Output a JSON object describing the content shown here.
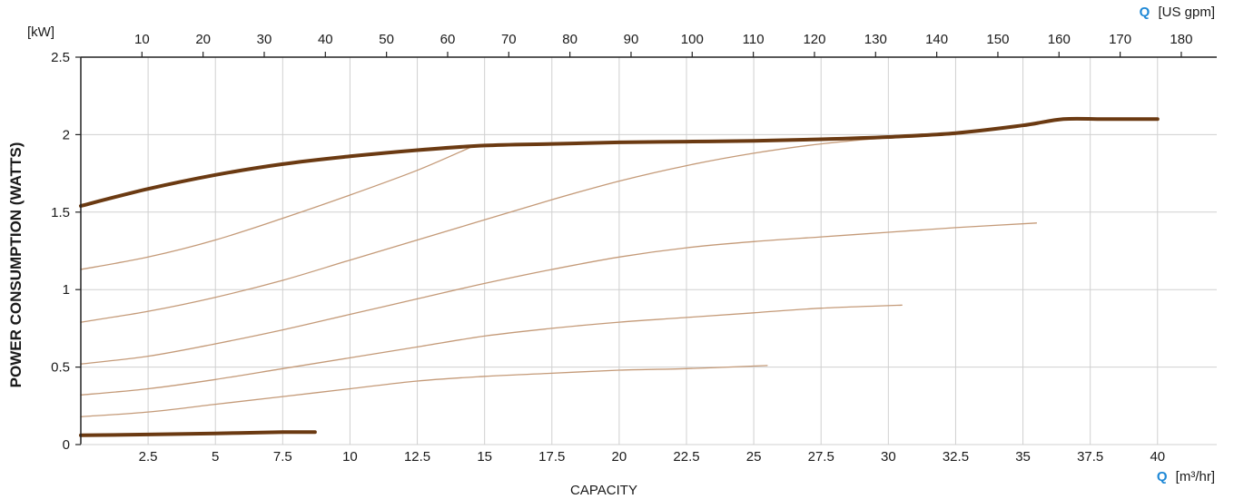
{
  "chart_data": {
    "type": "line",
    "title": "",
    "ylabel": "POWER CONSUMPTION (WATTS)",
    "xlabel": "CAPACITY",
    "y_unit_label": "[kW]",
    "x_bottom_unit": {
      "q": "Q",
      "unit": "[m³/hr]"
    },
    "x_top_unit": {
      "q": "Q",
      "unit": "[US gpm]"
    },
    "xlim": [
      0,
      42.2
    ],
    "ylim": [
      0,
      2.5
    ],
    "grid": true,
    "x_ticks": [
      {
        "value": 2.5,
        "label": "2.5"
      },
      {
        "value": 5,
        "label": "5"
      },
      {
        "value": 7.5,
        "label": "7.5"
      },
      {
        "value": 10,
        "label": "10"
      },
      {
        "value": 12.5,
        "label": "12.5"
      },
      {
        "value": 15,
        "label": "15"
      },
      {
        "value": 17.5,
        "label": "17.5"
      },
      {
        "value": 20,
        "label": "20"
      },
      {
        "value": 22.5,
        "label": "22.5"
      },
      {
        "value": 25,
        "label": "25"
      },
      {
        "value": 27.5,
        "label": "27.5"
      },
      {
        "value": 30,
        "label": "30"
      },
      {
        "value": 32.5,
        "label": "32.5"
      },
      {
        "value": 35,
        "label": "35"
      },
      {
        "value": 37.5,
        "label": "37.5"
      },
      {
        "value": 40,
        "label": "40"
      }
    ],
    "x_top_ticks": [
      {
        "value": 10,
        "label": "10"
      },
      {
        "value": 20,
        "label": "20"
      },
      {
        "value": 30,
        "label": "30"
      },
      {
        "value": 40,
        "label": "40"
      },
      {
        "value": 50,
        "label": "50"
      },
      {
        "value": 60,
        "label": "60"
      },
      {
        "value": 70,
        "label": "70"
      },
      {
        "value": 80,
        "label": "80"
      },
      {
        "value": 90,
        "label": "90"
      },
      {
        "value": 100,
        "label": "100"
      },
      {
        "value": 110,
        "label": "110"
      },
      {
        "value": 120,
        "label": "120"
      },
      {
        "value": 130,
        "label": "130"
      },
      {
        "value": 140,
        "label": "140"
      },
      {
        "value": 150,
        "label": "150"
      },
      {
        "value": 160,
        "label": "160"
      },
      {
        "value": 170,
        "label": "170"
      },
      {
        "value": 180,
        "label": "180"
      }
    ],
    "y_ticks": [
      {
        "value": 0,
        "label": "0"
      },
      {
        "value": 0.5,
        "label": "0.5"
      },
      {
        "value": 1,
        "label": "1"
      },
      {
        "value": 1.5,
        "label": "1.5"
      },
      {
        "value": 2,
        "label": "2"
      },
      {
        "value": 2.5,
        "label": "2.5"
      }
    ],
    "colors": {
      "thick": "#6b3a12",
      "thin": "#c49a78",
      "q_accent": "#1e88d6"
    },
    "series": [
      {
        "style": "thick",
        "x": [
          0,
          2.5,
          5,
          7.5,
          10,
          12.5,
          15,
          17.5,
          20,
          22.5,
          25,
          27.5,
          30,
          32.5,
          35,
          36.5,
          38,
          40
        ],
        "y": [
          1.54,
          1.65,
          1.74,
          1.81,
          1.86,
          1.9,
          1.93,
          1.94,
          1.95,
          1.955,
          1.96,
          1.97,
          1.985,
          2.01,
          2.06,
          2.1,
          2.1,
          2.1
        ]
      },
      {
        "style": "thin",
        "x": [
          0,
          2.5,
          5,
          7.5,
          10,
          12.5,
          14.5
        ],
        "y": [
          1.13,
          1.21,
          1.32,
          1.46,
          1.61,
          1.77,
          1.92
        ]
      },
      {
        "style": "thin",
        "x": [
          0,
          2.5,
          5,
          7.5,
          10,
          12.5,
          15,
          17.5,
          20,
          22.5,
          25,
          27.5,
          30,
          32.5
        ],
        "y": [
          0.79,
          0.86,
          0.95,
          1.06,
          1.19,
          1.32,
          1.45,
          1.58,
          1.7,
          1.8,
          1.88,
          1.94,
          1.98,
          2.0
        ]
      },
      {
        "style": "thin",
        "x": [
          0,
          2.5,
          5,
          7.5,
          10,
          12.5,
          15,
          17.5,
          20,
          22.5,
          25,
          27.5,
          30,
          32.5,
          35.5
        ],
        "y": [
          0.52,
          0.57,
          0.65,
          0.74,
          0.84,
          0.94,
          1.04,
          1.13,
          1.21,
          1.27,
          1.31,
          1.34,
          1.37,
          1.4,
          1.43
        ]
      },
      {
        "style": "thin",
        "x": [
          0,
          2.5,
          5,
          7.5,
          10,
          12.5,
          15,
          17.5,
          20,
          22.5,
          25,
          27.5,
          30.5
        ],
        "y": [
          0.32,
          0.36,
          0.42,
          0.49,
          0.56,
          0.63,
          0.7,
          0.75,
          0.79,
          0.82,
          0.85,
          0.88,
          0.9
        ]
      },
      {
        "style": "thin",
        "x": [
          0,
          2.5,
          5,
          7.5,
          10,
          12.5,
          15,
          17.5,
          20,
          22.5,
          25.5
        ],
        "y": [
          0.18,
          0.21,
          0.26,
          0.31,
          0.36,
          0.41,
          0.44,
          0.46,
          0.48,
          0.49,
          0.51
        ]
      },
      {
        "style": "thick",
        "x": [
          0,
          2.5,
          5,
          7.5,
          8.7
        ],
        "y": [
          0.06,
          0.065,
          0.072,
          0.08,
          0.08
        ]
      }
    ]
  }
}
